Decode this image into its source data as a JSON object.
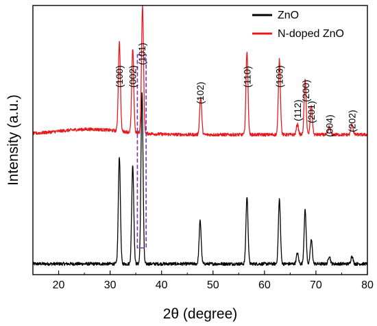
{
  "chart_data": {
    "type": "line",
    "xlabel": "2θ (degree)",
    "ylabel": "Intensity (a.u.)",
    "xlim": [
      15,
      80
    ],
    "x_ticks": [
      "20",
      "30",
      "40",
      "50",
      "60",
      "70",
      "80"
    ],
    "y_ticks_labeled": false,
    "grid": false,
    "legend_position": "top-right",
    "series": [
      {
        "name": "ZnO",
        "color": "#000000",
        "baseline": 0.04,
        "peaks": [
          [
            31.8,
            0.4
          ],
          [
            34.4,
            0.37
          ],
          [
            36.2,
            0.64
          ],
          [
            47.5,
            0.16
          ],
          [
            56.6,
            0.25
          ],
          [
            62.9,
            0.24
          ],
          [
            66.4,
            0.04
          ],
          [
            67.9,
            0.2
          ],
          [
            69.1,
            0.09
          ],
          [
            72.6,
            0.03
          ],
          [
            77.0,
            0.03
          ]
        ]
      },
      {
        "name": "N-doped ZnO",
        "color": "#e8191b",
        "baseline": 0.52,
        "peaks": [
          [
            31.8,
            0.33
          ],
          [
            34.4,
            0.31
          ],
          [
            36.3,
            0.47
          ],
          [
            47.6,
            0.14
          ],
          [
            56.6,
            0.31
          ],
          [
            62.9,
            0.28
          ],
          [
            66.4,
            0.04
          ],
          [
            67.9,
            0.2
          ],
          [
            69.1,
            0.11
          ],
          [
            72.6,
            0.03
          ],
          [
            77.0,
            0.04
          ]
        ]
      }
    ],
    "peak_labels": [
      {
        "text": "(100)",
        "x": 31.8
      },
      {
        "text": "(002)",
        "x": 34.4
      },
      {
        "text": "(101)",
        "x": 36.2
      },
      {
        "text": "(102)",
        "x": 47.5
      },
      {
        "text": "(110)",
        "x": 56.6
      },
      {
        "text": "(103)",
        "x": 62.9
      },
      {
        "text": "(112)",
        "x": 66.4
      },
      {
        "text": "(200)",
        "x": 68.0
      },
      {
        "text": "(201)",
        "x": 69.1
      },
      {
        "text": "(004)",
        "x": 72.6
      },
      {
        "text": "(202)",
        "x": 77.0
      }
    ],
    "highlight_box": {
      "x_range": [
        35.3,
        37.0
      ],
      "color": "#7b2fbe",
      "style": "dashed"
    }
  }
}
